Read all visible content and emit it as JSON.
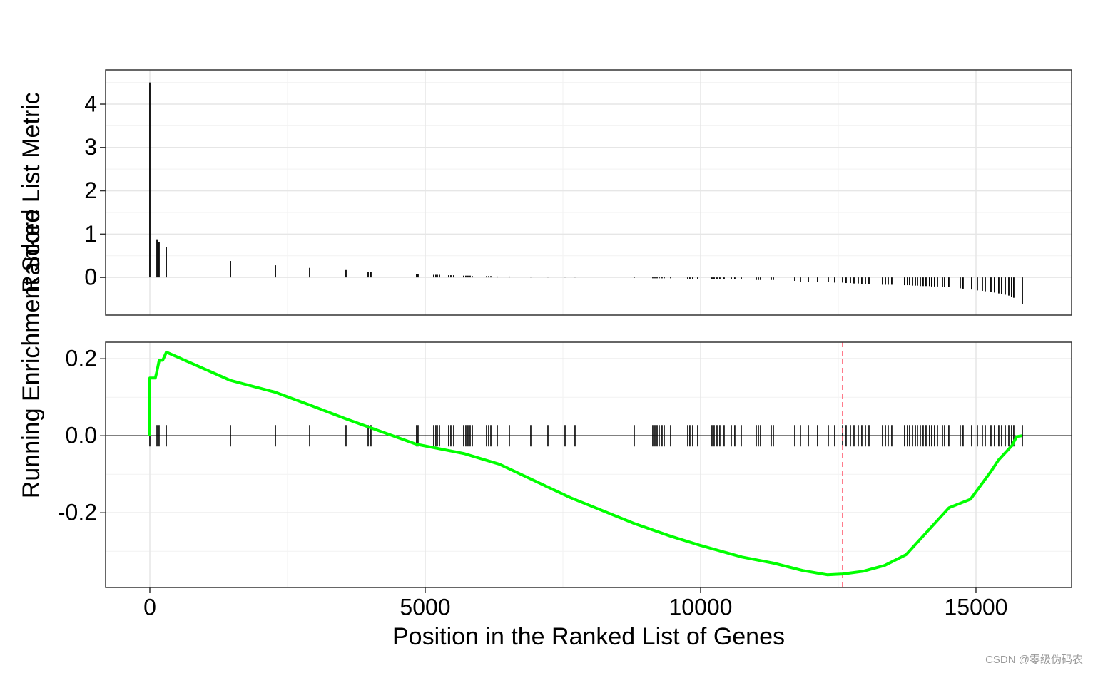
{
  "chart_data": [
    {
      "type": "bar",
      "ylabel": "Ranked List Metric",
      "color": "#000000",
      "x": [
        0,
        130,
        168,
        298,
        1464,
        2280,
        2902,
        3562,
        3964,
        4015,
        4844,
        4870,
        5155,
        5194,
        5220,
        5259,
        5427,
        5466,
        5518,
        5699,
        5738,
        5777,
        5816,
        5855,
        6114,
        6153,
        6192,
        6308,
        6528,
        6917,
        7228,
        7539,
        7720,
        8795,
        9132,
        9171,
        9210,
        9248,
        9300,
        9339,
        9456,
        9767,
        9805,
        9857,
        9948,
        10207,
        10246,
        10298,
        10349,
        10427,
        10557,
        10621,
        10738,
        11010,
        11049,
        11088,
        11282,
        11321,
        11710,
        11813,
        11956,
        12124,
        12318,
        12435,
        12578,
        12642,
        12720,
        12785,
        12862,
        12927,
        12992,
        13057,
        13303,
        13355,
        13406,
        13471,
        13704,
        13756,
        13795,
        13847,
        13899,
        13937,
        13989,
        14041,
        14093,
        14157,
        14196,
        14248,
        14300,
        14391,
        14430,
        14507,
        14714,
        14766,
        14922,
        15025,
        15116,
        15168,
        15272,
        15336,
        15414,
        15466,
        15531,
        15596,
        15647,
        15686,
        15842
      ],
      "values": [
        4.5,
        0.88,
        0.82,
        0.7,
        0.38,
        0.28,
        0.22,
        0.17,
        0.13,
        0.13,
        0.08,
        0.08,
        0.06,
        0.06,
        0.06,
        0.06,
        0.05,
        0.05,
        0.05,
        0.04,
        0.04,
        0.04,
        0.04,
        0.03,
        0.03,
        0.03,
        0.03,
        0.02,
        0.02,
        0.01,
        0.01,
        0.005,
        0.005,
        -0.01,
        -0.02,
        -0.02,
        -0.02,
        -0.02,
        -0.02,
        -0.02,
        -0.02,
        -0.03,
        -0.03,
        -0.03,
        -0.03,
        -0.04,
        -0.04,
        -0.04,
        -0.04,
        -0.04,
        -0.04,
        -0.04,
        -0.04,
        -0.06,
        -0.06,
        -0.06,
        -0.06,
        -0.06,
        -0.08,
        -0.1,
        -0.1,
        -0.11,
        -0.11,
        -0.12,
        -0.12,
        -0.13,
        -0.13,
        -0.14,
        -0.14,
        -0.15,
        -0.15,
        -0.16,
        -0.17,
        -0.17,
        -0.17,
        -0.17,
        -0.18,
        -0.18,
        -0.18,
        -0.19,
        -0.19,
        -0.19,
        -0.2,
        -0.2,
        -0.2,
        -0.2,
        -0.21,
        -0.21,
        -0.21,
        -0.22,
        -0.22,
        -0.22,
        -0.25,
        -0.26,
        -0.28,
        -0.3,
        -0.31,
        -0.32,
        -0.34,
        -0.35,
        -0.37,
        -0.38,
        -0.4,
        -0.42,
        -0.45,
        -0.47,
        -0.62
      ],
      "xlim": [
        -803,
        16736
      ],
      "ylim": [
        -0.87,
        4.79
      ],
      "yticks": [
        0,
        1,
        2,
        3,
        4
      ],
      "grid": true
    },
    {
      "type": "line",
      "ylabel": "Running Enrichment Score",
      "xlabel": "Position in the Ranked List of Genes",
      "color": "#00ff00",
      "x": [
        0,
        0,
        100,
        130,
        170,
        233,
        300,
        1460,
        2280,
        2900,
        3560,
        4020,
        4840,
        5700,
        6350,
        7640,
        8800,
        9460,
        10000,
        10750,
        11330,
        11850,
        12300,
        12575,
        12950,
        13340,
        13730,
        14120,
        14510,
        14900,
        15280,
        15410,
        15650,
        15740,
        15840
      ],
      "values": [
        0,
        0.15,
        0.15,
        0.168,
        0.196,
        0.196,
        0.217,
        0.144,
        0.113,
        0.08,
        0.044,
        0.02,
        -0.022,
        -0.046,
        -0.074,
        -0.161,
        -0.228,
        -0.261,
        -0.285,
        -0.315,
        -0.331,
        -0.35,
        -0.361,
        -0.359,
        -0.352,
        -0.337,
        -0.309,
        -0.248,
        -0.187,
        -0.165,
        -0.091,
        -0.063,
        -0.026,
        -0.002,
        0
      ],
      "vline": 12578,
      "vline_color": "#ff5a6e",
      "xlim": [
        -803,
        16736
      ],
      "xticks": [
        0,
        5000,
        10000,
        15000
      ],
      "ylim": [
        -0.394,
        0.243
      ],
      "yticks": [
        -0.2,
        {
          "value": 0,
          "label": "0.0"
        },
        0.2
      ],
      "grid": true
    }
  ],
  "watermark": "CSDN @零级伪码农"
}
